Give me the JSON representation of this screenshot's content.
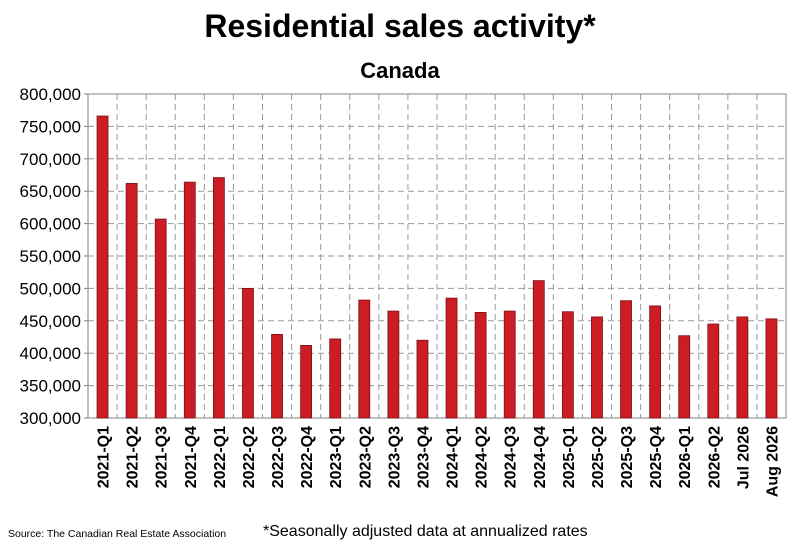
{
  "chart_data": {
    "type": "bar",
    "title": "Residential sales activity*",
    "subtitle": "Canada",
    "categories": [
      "2021-Q1",
      "2021-Q2",
      "2021-Q3",
      "2021-Q4",
      "2022-Q1",
      "2022-Q2",
      "2022-Q3",
      "2022-Q4",
      "2023-Q1",
      "2023-Q2",
      "2023-Q3",
      "2023-Q4",
      "2024-Q1",
      "2024-Q2",
      "2024-Q3",
      "2024-Q4",
      "2025-Q1",
      "2025-Q2",
      "2025-Q3",
      "2025-Q4",
      "2026-Q1",
      "2026-Q2",
      "Jul 2026",
      "Aug 2026"
    ],
    "values": [
      766000,
      662000,
      607000,
      664000,
      671000,
      500000,
      429000,
      412000,
      422000,
      482000,
      465000,
      420000,
      485000,
      463000,
      465000,
      512000,
      464000,
      456000,
      481000,
      473000,
      427000,
      445000,
      456000,
      453000
    ],
    "ylim": [
      300000,
      800000
    ],
    "yticks": [
      "300,000",
      "350,000",
      "400,000",
      "450,000",
      "500,000",
      "550,000",
      "600,000",
      "650,000",
      "700,000",
      "750,000",
      "800,000"
    ],
    "bar_color": "#cc1d24",
    "grid": true
  },
  "source": "Source: The Canadian Real Estate Association",
  "footnote": "*Seasonally adjusted data at annualized rates"
}
